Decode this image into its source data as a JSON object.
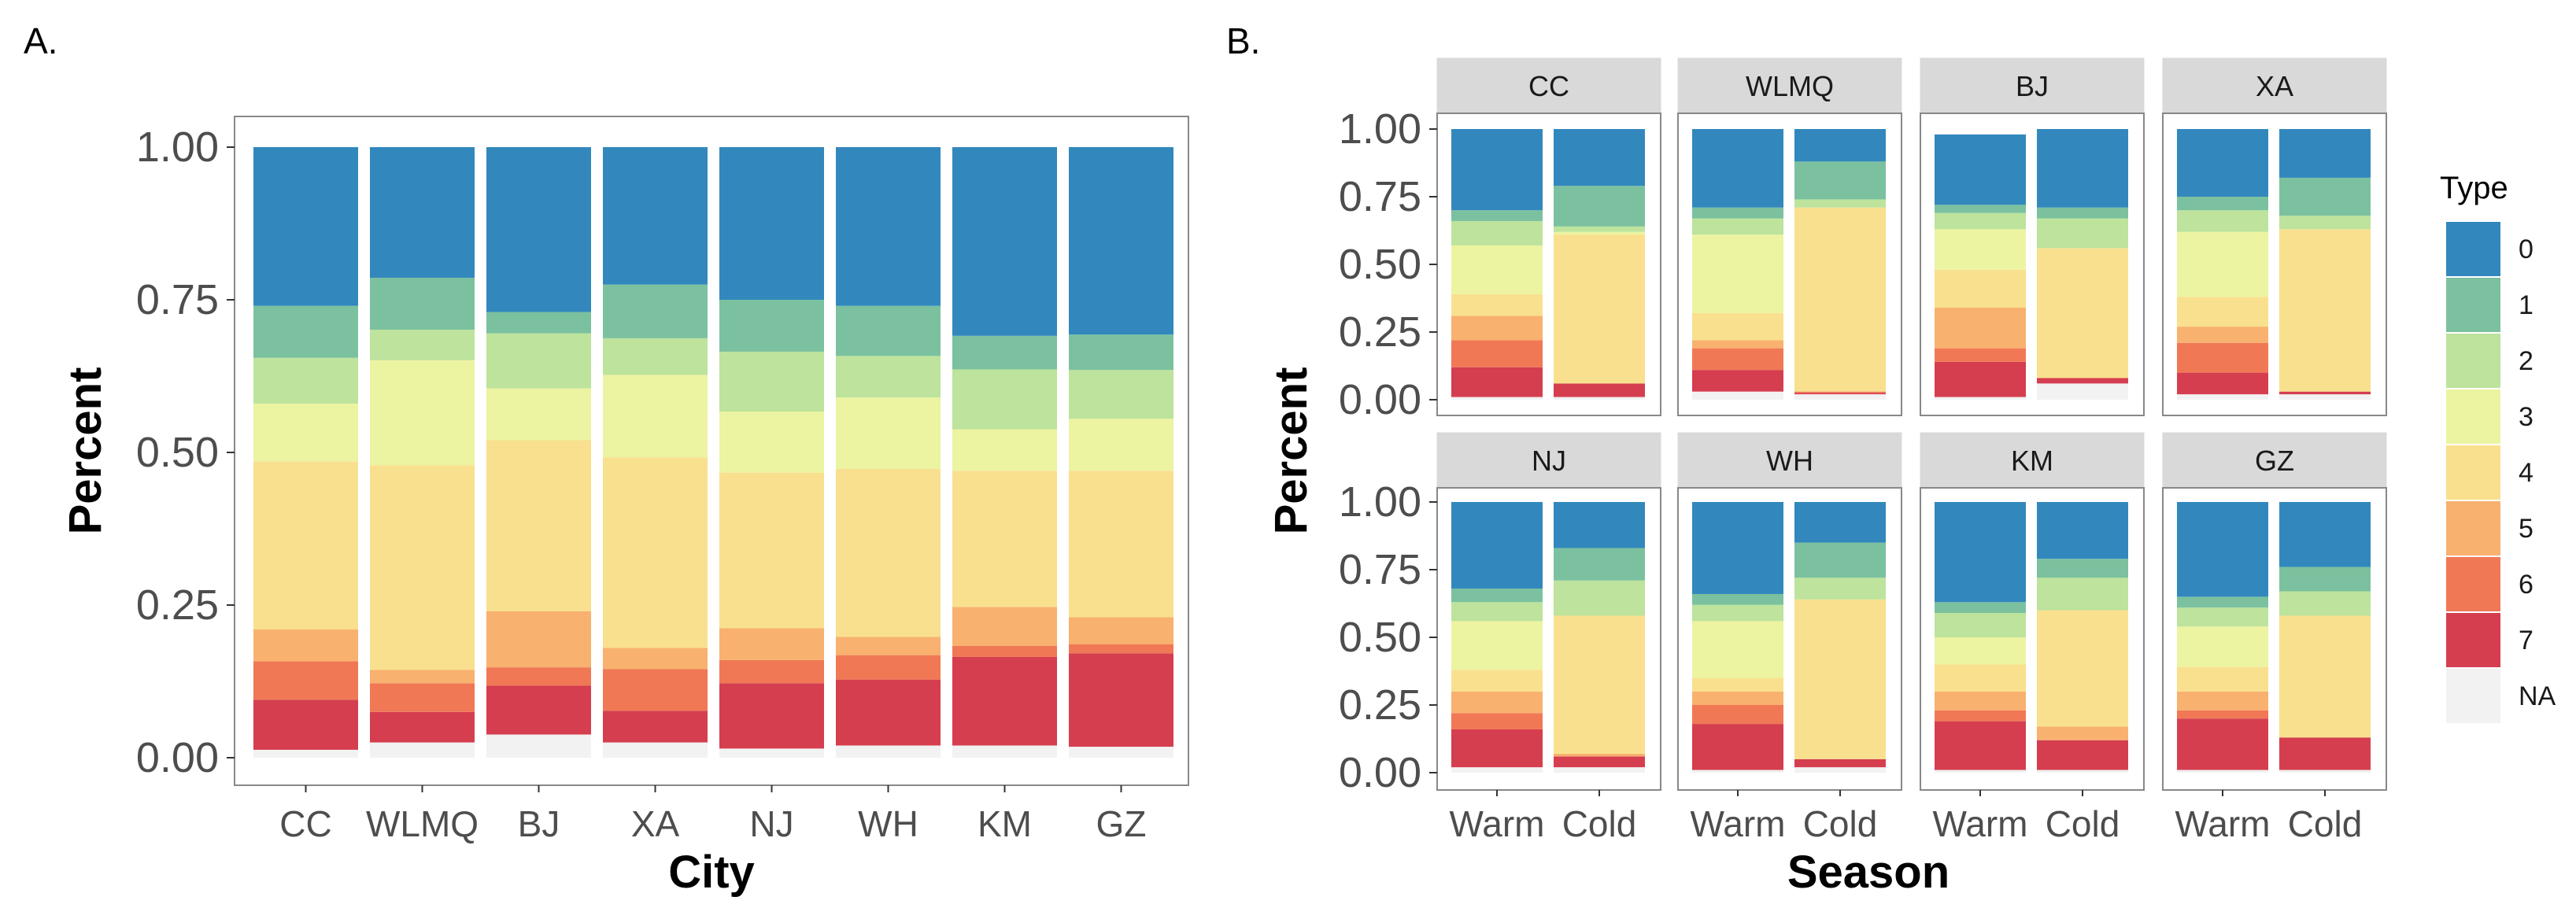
{
  "panel_labels": {
    "a": "A.",
    "b": "B."
  },
  "legend": {
    "title": "Type",
    "items": [
      "0",
      "1",
      "2",
      "3",
      "4",
      "5",
      "6",
      "7",
      "NA"
    ]
  },
  "colors": {
    "0": "#3288bd",
    "1": "#7bc19f",
    "2": "#bde39c",
    "3": "#ecf3a1",
    "4": "#f9e08e",
    "5": "#f8b16f",
    "6": "#f07855",
    "7": "#d53e4f",
    "NA": "#f2f2f2"
  },
  "chart_data": [
    {
      "type": "bar",
      "stacked": true,
      "title": "A.",
      "xlabel": "City",
      "ylabel": "Percent",
      "ylim": [
        0,
        1
      ],
      "yticks": [
        "0.00",
        "0.25",
        "0.50",
        "0.75",
        "1.00"
      ],
      "categories": [
        "CC",
        "WLMQ",
        "BJ",
        "XA",
        "NJ",
        "WH",
        "KM",
        "GZ"
      ],
      "series": [
        {
          "name": "NA",
          "values": [
            0.013,
            0.025,
            0.038,
            0.025,
            0.015,
            0.02,
            0.02,
            0.018
          ]
        },
        {
          "name": "7",
          "values": [
            0.082,
            0.05,
            0.08,
            0.052,
            0.107,
            0.108,
            0.145,
            0.153
          ]
        },
        {
          "name": "6",
          "values": [
            0.063,
            0.047,
            0.03,
            0.068,
            0.038,
            0.04,
            0.018,
            0.015
          ]
        },
        {
          "name": "5",
          "values": [
            0.052,
            0.022,
            0.092,
            0.035,
            0.052,
            0.03,
            0.064,
            0.044
          ]
        },
        {
          "name": "4",
          "values": [
            0.275,
            0.335,
            0.28,
            0.312,
            0.255,
            0.275,
            0.223,
            0.24
          ]
        },
        {
          "name": "3",
          "values": [
            0.095,
            0.172,
            0.085,
            0.135,
            0.1,
            0.117,
            0.068,
            0.085
          ]
        },
        {
          "name": "2",
          "values": [
            0.075,
            0.05,
            0.09,
            0.06,
            0.098,
            0.068,
            0.098,
            0.08
          ]
        },
        {
          "name": "1",
          "values": [
            0.085,
            0.085,
            0.035,
            0.088,
            0.085,
            0.082,
            0.055,
            0.058
          ]
        },
        {
          "name": "0",
          "values": [
            0.26,
            0.214,
            0.27,
            0.225,
            0.25,
            0.26,
            0.309,
            0.307
          ]
        }
      ]
    },
    {
      "type": "bar",
      "stacked": true,
      "title": "B.",
      "xlabel": "Season",
      "ylabel": "Percent",
      "ylim": [
        0,
        1
      ],
      "yticks": [
        "0.00",
        "0.25",
        "0.50",
        "0.75",
        "1.00"
      ],
      "categories": [
        "Warm",
        "Cold"
      ],
      "facets": [
        {
          "city": "CC",
          "bars": [
            {
              "NA": 0.01,
              "7": 0.11,
              "6": 0.1,
              "5": 0.09,
              "4": 0.08,
              "3": 0.18,
              "2": 0.09,
              "1": 0.04,
              "0": 0.3
            },
            {
              "NA": 0.01,
              "7": 0.05,
              "6": 0.0,
              "5": 0.0,
              "4": 0.55,
              "3": 0.01,
              "2": 0.02,
              "1": 0.15,
              "0": 0.21
            }
          ]
        },
        {
          "city": "WLMQ",
          "bars": [
            {
              "NA": 0.03,
              "7": 0.08,
              "6": 0.08,
              "5": 0.03,
              "4": 0.1,
              "3": 0.29,
              "2": 0.06,
              "1": 0.04,
              "0": 0.29
            },
            {
              "NA": 0.02,
              "7": 0.005,
              "6": 0.005,
              "5": 0.0,
              "4": 0.68,
              "3": 0.0,
              "2": 0.03,
              "1": 0.14,
              "0": 0.12
            }
          ]
        },
        {
          "city": "BJ",
          "bars": [
            {
              "NA": 0.01,
              "7": 0.13,
              "6": 0.05,
              "5": 0.15,
              "4": 0.14,
              "3": 0.15,
              "2": 0.06,
              "1": 0.03,
              "0": 0.26
            },
            {
              "NA": 0.06,
              "7": 0.02,
              "6": 0.0,
              "5": 0.0,
              "4": 0.48,
              "3": 0.0,
              "2": 0.11,
              "1": 0.04,
              "0": 0.29
            }
          ]
        },
        {
          "city": "XA",
          "bars": [
            {
              "NA": 0.02,
              "7": 0.08,
              "6": 0.11,
              "5": 0.06,
              "4": 0.11,
              "3": 0.24,
              "2": 0.08,
              "1": 0.05,
              "0": 0.25
            },
            {
              "NA": 0.02,
              "7": 0.01,
              "6": 0.0,
              "5": 0.0,
              "4": 0.6,
              "3": 0.0,
              "2": 0.05,
              "1": 0.14,
              "0": 0.18
            }
          ]
        },
        {
          "city": "NJ",
          "bars": [
            {
              "NA": 0.02,
              "7": 0.14,
              "6": 0.06,
              "5": 0.08,
              "4": 0.08,
              "3": 0.18,
              "2": 0.07,
              "1": 0.05,
              "0": 0.32
            },
            {
              "NA": 0.02,
              "7": 0.04,
              "6": 0.0,
              "5": 0.01,
              "4": 0.51,
              "3": 0.0,
              "2": 0.13,
              "1": 0.12,
              "0": 0.17
            }
          ]
        },
        {
          "city": "WH",
          "bars": [
            {
              "NA": 0.01,
              "7": 0.17,
              "6": 0.07,
              "5": 0.05,
              "4": 0.05,
              "3": 0.21,
              "2": 0.06,
              "1": 0.04,
              "0": 0.34
            },
            {
              "NA": 0.02,
              "7": 0.03,
              "6": 0.0,
              "5": 0.0,
              "4": 0.59,
              "3": 0.0,
              "2": 0.08,
              "1": 0.13,
              "0": 0.15
            }
          ]
        },
        {
          "city": "KM",
          "bars": [
            {
              "NA": 0.01,
              "7": 0.18,
              "6": 0.04,
              "5": 0.07,
              "4": 0.1,
              "3": 0.1,
              "2": 0.09,
              "1": 0.04,
              "0": 0.37
            },
            {
              "NA": 0.01,
              "7": 0.11,
              "6": 0.0,
              "5": 0.05,
              "4": 0.43,
              "3": 0.0,
              "2": 0.12,
              "1": 0.07,
              "0": 0.21
            }
          ]
        },
        {
          "city": "GZ",
          "bars": [
            {
              "NA": 0.01,
              "7": 0.19,
              "6": 0.03,
              "5": 0.07,
              "4": 0.09,
              "3": 0.15,
              "2": 0.07,
              "1": 0.04,
              "0": 0.35
            },
            {
              "NA": 0.01,
              "7": 0.12,
              "6": 0.0,
              "5": 0.0,
              "4": 0.45,
              "3": 0.0,
              "2": 0.09,
              "1": 0.09,
              "0": 0.24
            }
          ]
        }
      ]
    }
  ]
}
